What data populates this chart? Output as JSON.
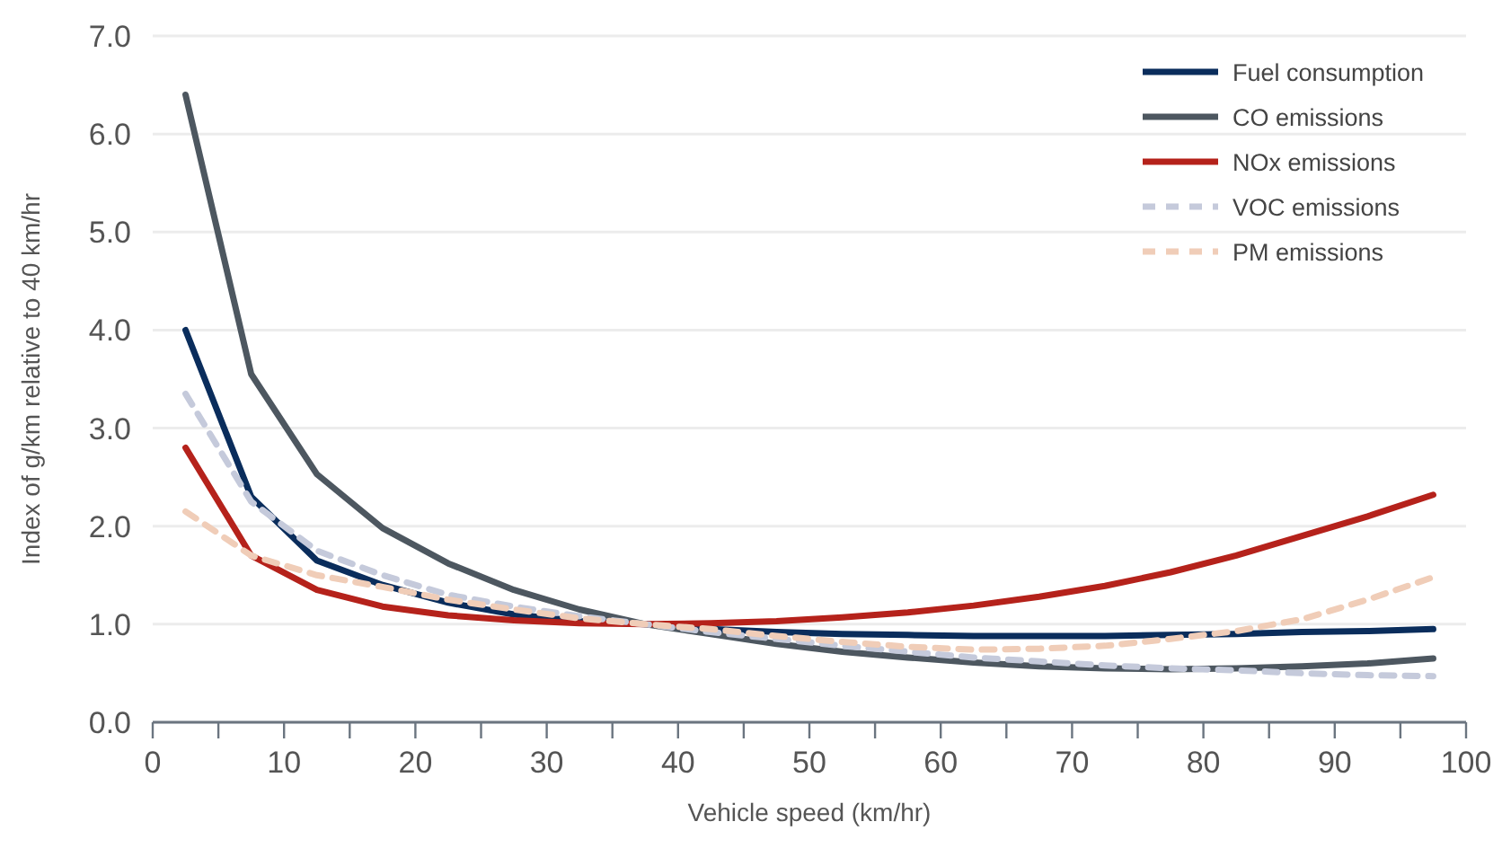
{
  "chart_data": {
    "type": "line",
    "xlabel": "Vehicle speed (km/hr)",
    "ylabel": "Index of g/km relative to 40 km/hr",
    "x": [
      2.5,
      7.5,
      12.5,
      17.5,
      22.5,
      27.5,
      32.5,
      37.5,
      42.5,
      47.5,
      52.5,
      57.5,
      62.5,
      67.5,
      72.5,
      77.5,
      82.5,
      87.5,
      92.5,
      97.5
    ],
    "series": [
      {
        "name": "Fuel consumption",
        "color": "#0a2d5c",
        "values": [
          4.0,
          2.3,
          1.65,
          1.4,
          1.22,
          1.1,
          1.03,
          1.0,
          0.95,
          0.92,
          0.9,
          0.89,
          0.88,
          0.88,
          0.88,
          0.89,
          0.9,
          0.92,
          0.93,
          0.95
        ]
      },
      {
        "name": "CO emissions",
        "color": "#4d5760",
        "values": [
          6.4,
          3.55,
          2.53,
          1.98,
          1.62,
          1.35,
          1.15,
          1.0,
          0.9,
          0.8,
          0.72,
          0.66,
          0.61,
          0.57,
          0.55,
          0.54,
          0.55,
          0.57,
          0.6,
          0.65
        ]
      },
      {
        "name": "NOx emissions",
        "color": "#b5221b",
        "values": [
          2.8,
          1.7,
          1.35,
          1.18,
          1.09,
          1.04,
          1.01,
          1.0,
          1.01,
          1.03,
          1.07,
          1.12,
          1.19,
          1.28,
          1.39,
          1.53,
          1.7,
          1.9,
          2.1,
          2.32
        ]
      },
      {
        "name": "VOC emissions",
        "color": "#c5cadb",
        "line_style": "dashed",
        "values": [
          3.35,
          2.25,
          1.75,
          1.5,
          1.3,
          1.18,
          1.08,
          1.0,
          0.92,
          0.85,
          0.78,
          0.72,
          0.66,
          0.62,
          0.58,
          0.55,
          0.53,
          0.5,
          0.48,
          0.47
        ]
      },
      {
        "name": "PM emissions",
        "color": "#f0cdb8",
        "line_style": "dashed",
        "values": [
          2.15,
          1.7,
          1.5,
          1.38,
          1.25,
          1.15,
          1.06,
          1.0,
          0.95,
          0.88,
          0.82,
          0.77,
          0.74,
          0.75,
          0.78,
          0.85,
          0.93,
          1.05,
          1.25,
          1.48
        ]
      }
    ],
    "xlim": [
      0,
      100
    ],
    "xticks": [
      0,
      {
        "value": 5,
        "label": null
      },
      10,
      {
        "value": 15,
        "label": null
      },
      20,
      {
        "value": 25,
        "label": null
      },
      30,
      {
        "value": 35,
        "label": null
      },
      40,
      {
        "value": 45,
        "label": null
      },
      50,
      {
        "value": 55,
        "label": null
      },
      60,
      {
        "value": 65,
        "label": null
      },
      70,
      {
        "value": 75,
        "label": null
      },
      80,
      {
        "value": 85,
        "label": null
      },
      90,
      {
        "value": 95,
        "label": null
      },
      100
    ],
    "ylim": [
      0,
      7
    ],
    "yticks": [
      {
        "value": 0,
        "label": "0.0"
      },
      {
        "value": 1,
        "label": "1.0"
      },
      {
        "value": 2,
        "label": "2.0"
      },
      {
        "value": 3,
        "label": "3.0"
      },
      {
        "value": 4,
        "label": "4.0"
      },
      {
        "value": 5,
        "label": "5.0"
      },
      {
        "value": 6,
        "label": "6.0"
      },
      {
        "value": 7,
        "label": "7.0"
      }
    ],
    "grid": "y",
    "legend": "top right",
    "line_style": "solid"
  }
}
